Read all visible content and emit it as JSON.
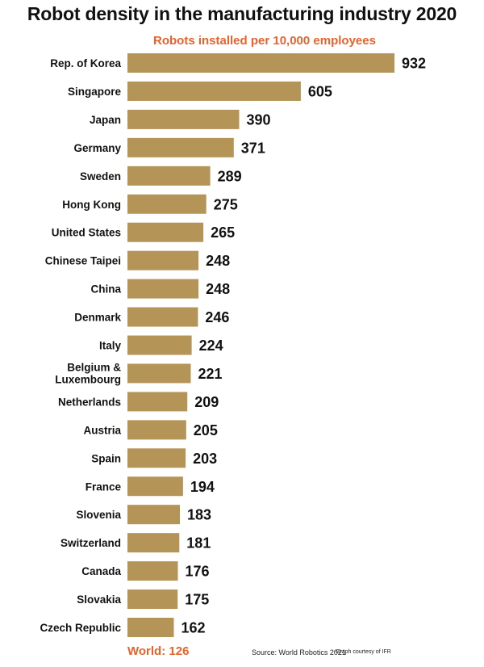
{
  "chart_data": {
    "type": "bar",
    "orientation": "horizontal",
    "title": "Robot density in the manufacturing industry 2020",
    "subtitle": "Robots installed per 10,000 employees",
    "categories": [
      "Rep. of Korea",
      "Singapore",
      "Japan",
      "Germany",
      "Sweden",
      "Hong Kong",
      "United States",
      "Chinese Taipei",
      "China",
      "Denmark",
      "Italy",
      "Belgium & Luxembourg",
      "Netherlands",
      "Austria",
      "Spain",
      "France",
      "Slovenia",
      "Switzerland",
      "Canada",
      "Slovakia",
      "Czech Republic"
    ],
    "values": [
      932,
      605,
      390,
      371,
      289,
      275,
      265,
      248,
      248,
      246,
      224,
      221,
      209,
      205,
      203,
      194,
      183,
      181,
      176,
      175,
      162
    ],
    "xlim": [
      0,
      932
    ],
    "grid": false,
    "bar_color": "#b59457",
    "accent_color": "#e8622c"
  },
  "footer": {
    "world": "World: 126",
    "source": "Source: World Robotics 2021",
    "credit": "Graph courtesy of IFR"
  }
}
